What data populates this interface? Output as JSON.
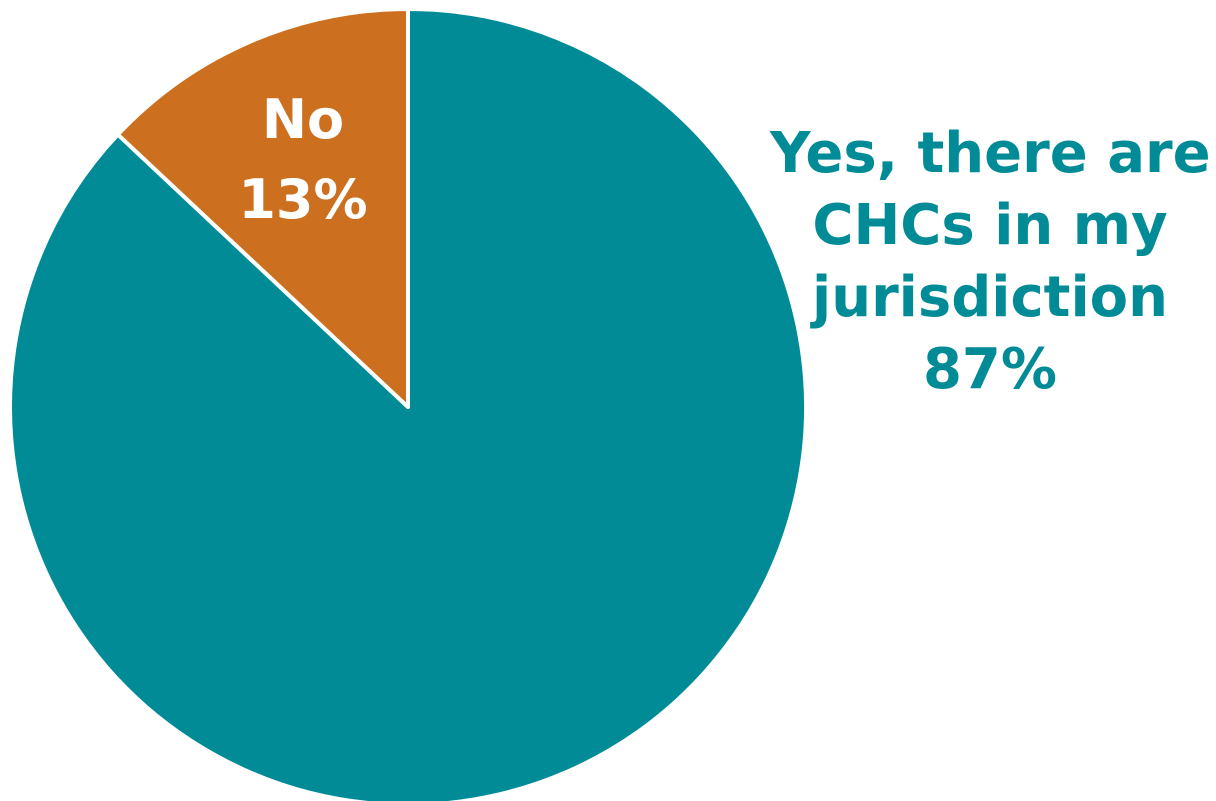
{
  "chart_data": {
    "type": "pie",
    "slices": [
      {
        "label_lines": [
          "Yes, there are",
          "CHCs in my",
          "jurisdiction"
        ],
        "value": 87,
        "value_label": "87%",
        "color": "#008b96"
      },
      {
        "label_lines": [
          "No"
        ],
        "value": 13,
        "value_label": "13%",
        "color": "#cc6f1f"
      }
    ],
    "start": "top",
    "direction": "clockwise"
  }
}
